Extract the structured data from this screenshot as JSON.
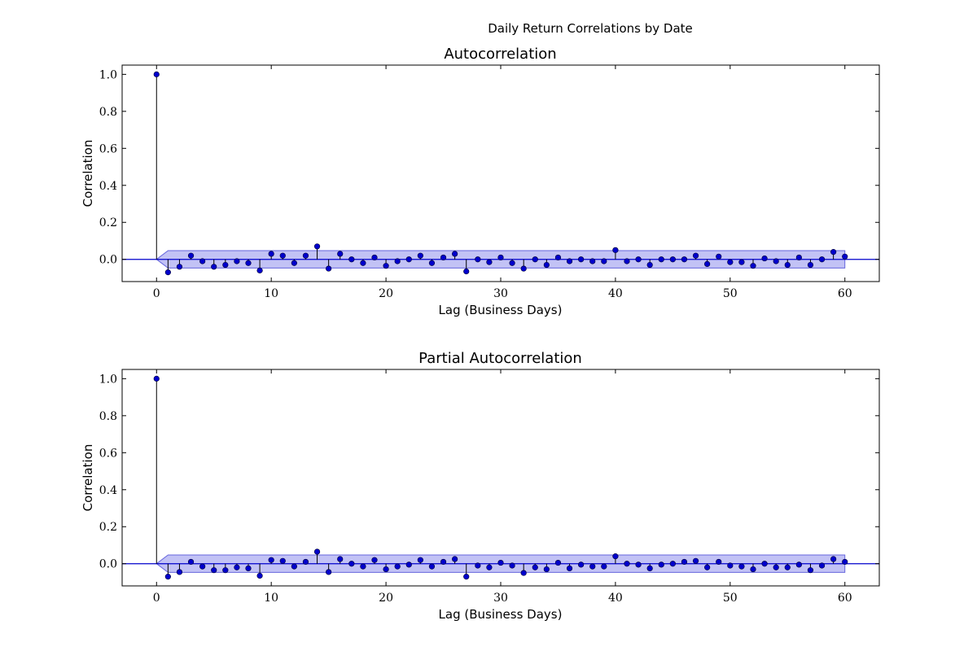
{
  "figure_title": "Daily Return Correlations by Date",
  "chart_data": [
    {
      "type": "stem",
      "title": "Autocorrelation",
      "xlabel": "Lag (Business Days)",
      "ylabel": "Correlation",
      "xlim": [
        -3,
        63
      ],
      "ylim": [
        -0.12,
        1.05
      ],
      "xticks": [
        0,
        10,
        20,
        30,
        40,
        50,
        60
      ],
      "xtick_labels": [
        "0",
        "10",
        "20",
        "30",
        "40",
        "50",
        "60"
      ],
      "yticks": [
        0.0,
        0.2,
        0.4,
        0.6,
        0.8,
        1.0
      ],
      "ytick_labels": [
        "0.0",
        "0.2",
        "0.4",
        "0.6",
        "0.8",
        "1.0"
      ],
      "grid": false,
      "baseline": 0,
      "confidence_band": 0.047,
      "x": [
        0,
        1,
        2,
        3,
        4,
        5,
        6,
        7,
        8,
        9,
        10,
        11,
        12,
        13,
        14,
        15,
        16,
        17,
        18,
        19,
        20,
        21,
        22,
        23,
        24,
        25,
        26,
        27,
        28,
        29,
        30,
        31,
        32,
        33,
        34,
        35,
        36,
        37,
        38,
        39,
        40,
        41,
        42,
        43,
        44,
        45,
        46,
        47,
        48,
        49,
        50,
        51,
        52,
        53,
        54,
        55,
        56,
        57,
        58,
        59,
        60
      ],
      "values": [
        1.0,
        -0.07,
        -0.04,
        0.02,
        -0.01,
        -0.04,
        -0.03,
        -0.01,
        -0.02,
        -0.06,
        0.03,
        0.02,
        -0.02,
        0.02,
        0.07,
        -0.05,
        0.03,
        0.0,
        -0.02,
        0.01,
        -0.035,
        -0.01,
        0.0,
        0.02,
        -0.02,
        0.01,
        0.03,
        -0.065,
        0.0,
        -0.015,
        0.01,
        -0.02,
        -0.05,
        0.0,
        -0.03,
        0.01,
        -0.01,
        0.0,
        -0.01,
        -0.01,
        0.05,
        -0.01,
        0.0,
        -0.03,
        0.0,
        0.0,
        0.0,
        0.02,
        -0.025,
        0.015,
        -0.015,
        -0.015,
        -0.035,
        0.005,
        -0.01,
        -0.03,
        0.01,
        -0.03,
        0.0,
        0.04,
        0.015
      ],
      "colors": {
        "marker": "#0000cc",
        "stem": "#000000",
        "band": "#9999ee",
        "baseline": "#0000cc"
      }
    },
    {
      "type": "stem",
      "title": "Partial Autocorrelation",
      "xlabel": "Lag (Business Days)",
      "ylabel": "Correlation",
      "xlim": [
        -3,
        63
      ],
      "ylim": [
        -0.12,
        1.05
      ],
      "xticks": [
        0,
        10,
        20,
        30,
        40,
        50,
        60
      ],
      "xtick_labels": [
        "0",
        "10",
        "20",
        "30",
        "40",
        "50",
        "60"
      ],
      "yticks": [
        0.0,
        0.2,
        0.4,
        0.6,
        0.8,
        1.0
      ],
      "ytick_labels": [
        "0.0",
        "0.2",
        "0.4",
        "0.6",
        "0.8",
        "1.0"
      ],
      "grid": false,
      "baseline": 0,
      "confidence_band": 0.047,
      "x": [
        0,
        1,
        2,
        3,
        4,
        5,
        6,
        7,
        8,
        9,
        10,
        11,
        12,
        13,
        14,
        15,
        16,
        17,
        18,
        19,
        20,
        21,
        22,
        23,
        24,
        25,
        26,
        27,
        28,
        29,
        30,
        31,
        32,
        33,
        34,
        35,
        36,
        37,
        38,
        39,
        40,
        41,
        42,
        43,
        44,
        45,
        46,
        47,
        48,
        49,
        50,
        51,
        52,
        53,
        54,
        55,
        56,
        57,
        58,
        59,
        60
      ],
      "values": [
        1.0,
        -0.07,
        -0.045,
        0.01,
        -0.015,
        -0.035,
        -0.035,
        -0.02,
        -0.025,
        -0.065,
        0.02,
        0.015,
        -0.015,
        0.01,
        0.065,
        -0.045,
        0.025,
        0.0,
        -0.015,
        0.02,
        -0.03,
        -0.015,
        -0.005,
        0.02,
        -0.015,
        0.01,
        0.025,
        -0.07,
        -0.01,
        -0.02,
        0.005,
        -0.01,
        -0.05,
        -0.02,
        -0.03,
        0.005,
        -0.025,
        -0.005,
        -0.015,
        -0.015,
        0.04,
        0.0,
        -0.005,
        -0.025,
        -0.005,
        0.0,
        0.01,
        0.015,
        -0.02,
        0.01,
        -0.01,
        -0.015,
        -0.03,
        0.0,
        -0.02,
        -0.02,
        -0.005,
        -0.035,
        -0.01,
        0.025,
        0.01
      ],
      "colors": {
        "marker": "#0000cc",
        "stem": "#000000",
        "band": "#9999ee",
        "baseline": "#0000cc"
      }
    }
  ]
}
